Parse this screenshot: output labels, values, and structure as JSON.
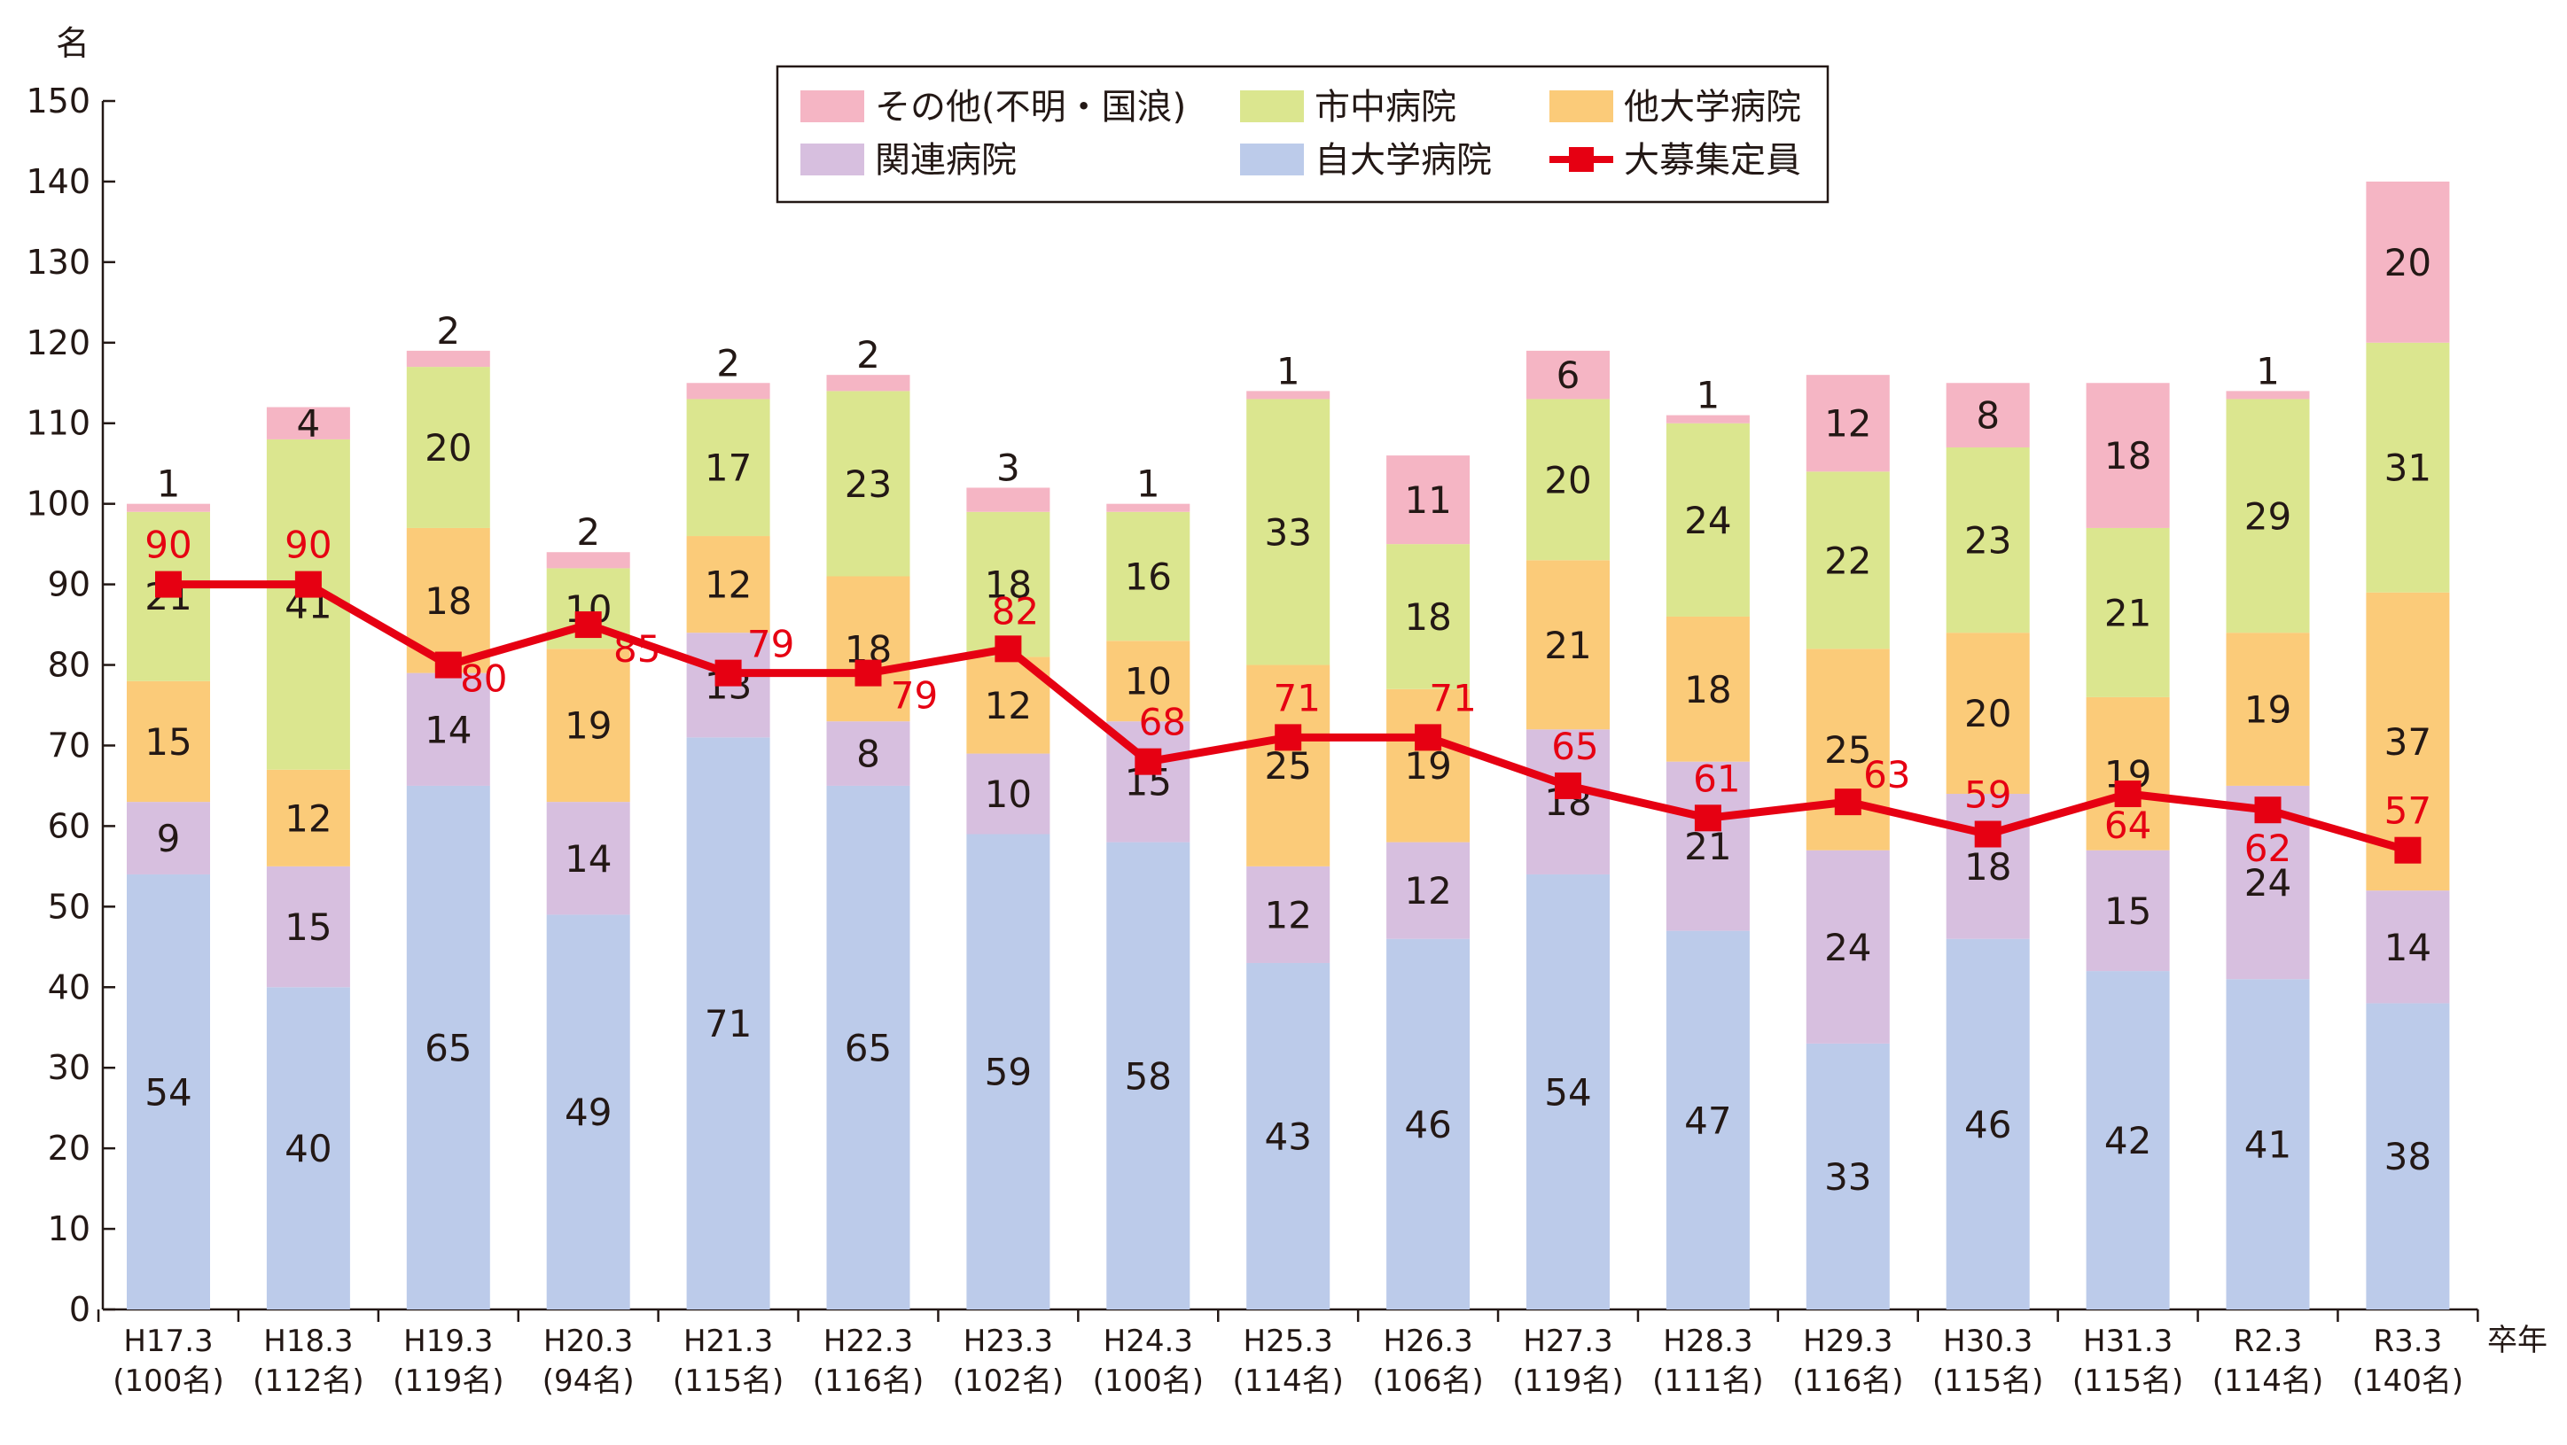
{
  "chart_data": {
    "type": "bar",
    "stacked": true,
    "title": "",
    "ylabel": "名",
    "xlabel": "卒年",
    "ylim": [
      0,
      150
    ],
    "yticks": [
      0,
      10,
      20,
      30,
      40,
      50,
      60,
      70,
      80,
      90,
      100,
      110,
      120,
      130,
      140,
      150
    ],
    "grid": false,
    "legend_position": "top",
    "categories": [
      {
        "year": "H17.3",
        "total": "(100名)"
      },
      {
        "year": "H18.3",
        "total": "(112名)"
      },
      {
        "year": "H19.3",
        "total": "(119名)"
      },
      {
        "year": "H20.3",
        "total": "(94名)"
      },
      {
        "year": "H21.3",
        "total": "(115名)"
      },
      {
        "year": "H22.3",
        "total": "(116名)"
      },
      {
        "year": "H23.3",
        "total": "(102名)"
      },
      {
        "year": "H24.3",
        "total": "(100名)"
      },
      {
        "year": "H25.3",
        "total": "(114名)"
      },
      {
        "year": "H26.3",
        "total": "(106名)"
      },
      {
        "year": "H27.3",
        "total": "(119名)"
      },
      {
        "year": "H28.3",
        "total": "(111名)"
      },
      {
        "year": "H29.3",
        "total": "(116名)"
      },
      {
        "year": "H30.3",
        "total": "(115名)"
      },
      {
        "year": "H31.3",
        "total": "(115名)"
      },
      {
        "year": "R2.3",
        "total": "(114名)"
      },
      {
        "year": "R3.3",
        "total": "(140名)"
      }
    ],
    "series": [
      {
        "name": "自大学病院",
        "key": "own",
        "color": "#bccbea",
        "values": [
          54,
          40,
          65,
          49,
          71,
          65,
          59,
          58,
          43,
          46,
          54,
          47,
          33,
          46,
          42,
          41,
          38
        ]
      },
      {
        "name": "関連病院",
        "key": "affiliated",
        "color": "#d7bfdf",
        "values": [
          9,
          15,
          14,
          14,
          13,
          8,
          10,
          15,
          12,
          12,
          18,
          21,
          24,
          18,
          15,
          24,
          14
        ]
      },
      {
        "name": "他大学病院",
        "key": "other_univ",
        "color": "#fbcb79",
        "values": [
          15,
          12,
          18,
          19,
          12,
          18,
          12,
          10,
          25,
          19,
          21,
          18,
          25,
          20,
          19,
          19,
          37
        ]
      },
      {
        "name": "市中病院",
        "key": "city",
        "color": "#dbe68f",
        "values": [
          21,
          41,
          20,
          10,
          17,
          23,
          18,
          16,
          33,
          18,
          20,
          24,
          22,
          23,
          21,
          29,
          31
        ]
      },
      {
        "name": "その他(不明・国浪)",
        "key": "other",
        "color": "#f5b5c4",
        "values": [
          1,
          4,
          2,
          2,
          2,
          2,
          3,
          1,
          1,
          11,
          6,
          1,
          12,
          8,
          18,
          1,
          20
        ]
      }
    ],
    "line_series": {
      "name": "大募集定員",
      "color": "#e60012",
      "values": [
        90,
        90,
        80,
        85,
        79,
        79,
        82,
        68,
        71,
        71,
        65,
        61,
        63,
        59,
        64,
        62,
        57
      ]
    },
    "legend_order": [
      "other",
      "city",
      "other_univ",
      "affiliated",
      "own",
      "line"
    ]
  }
}
